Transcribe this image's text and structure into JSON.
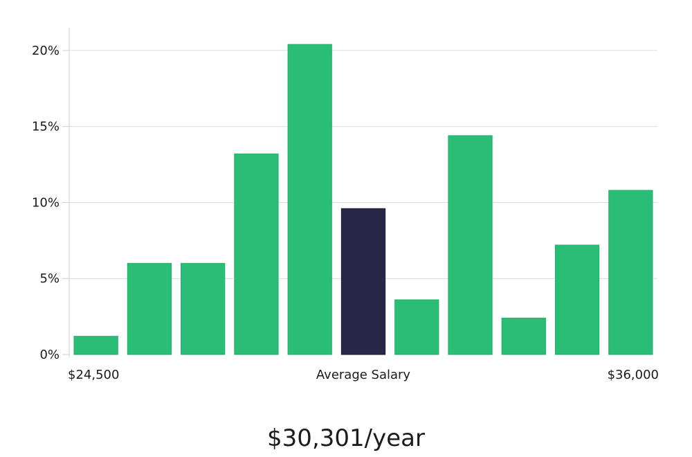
{
  "colors": {
    "bar": "#29bd76",
    "highlight": "#2a2647",
    "grid": "#dcdcdc",
    "text": "#1a1a1a"
  },
  "chart_data": {
    "type": "bar",
    "title": "",
    "xlabel": "",
    "ylabel": "",
    "categories": [
      "$24,500",
      "",
      "",
      "",
      "",
      "Average Salary",
      "",
      "",
      "",
      "",
      "$36,000"
    ],
    "values": [
      1.2,
      6.0,
      6.0,
      13.2,
      20.4,
      9.6,
      3.6,
      14.4,
      2.4,
      7.2,
      10.8
    ],
    "highlight_index": 5,
    "ylim": [
      0,
      21.5
    ],
    "yticks": [
      0,
      5,
      10,
      15,
      20
    ],
    "ytick_labels": [
      "0%",
      "5%",
      "10%",
      "15%",
      "20%"
    ],
    "x_labels": {
      "left": "$24,500",
      "center": "Average Salary",
      "right": "$36,000"
    },
    "grid": true,
    "legend": "none"
  },
  "salary_text": "$30,301/year"
}
